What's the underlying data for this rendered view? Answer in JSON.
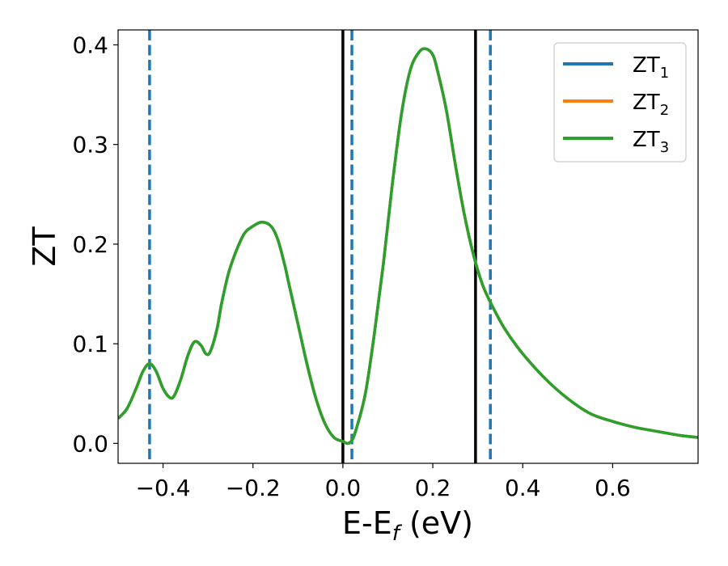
{
  "chart_data": {
    "type": "line",
    "xlabel": "E-E",
    "xlabel_subscript": "f",
    "xlabel_unit": " (eV)",
    "ylabel": "ZT",
    "xlim": [
      -0.5,
      0.79
    ],
    "ylim": [
      -0.02,
      0.415
    ],
    "xticks": [
      -0.4,
      -0.2,
      0.0,
      0.2,
      0.4,
      0.6
    ],
    "xtick_labels": [
      "−0.4",
      "−0.2",
      "0.0",
      "0.2",
      "0.4",
      "0.6"
    ],
    "yticks": [
      0.0,
      0.1,
      0.2,
      0.3,
      0.4
    ],
    "ytick_labels": [
      "0.0",
      "0.1",
      "0.2",
      "0.3",
      "0.4"
    ],
    "grid": false,
    "legend_position": "top-right",
    "x": [
      -0.5,
      -0.48,
      -0.46,
      -0.445,
      -0.43,
      -0.415,
      -0.4,
      -0.385,
      -0.375,
      -0.36,
      -0.345,
      -0.33,
      -0.315,
      -0.305,
      -0.295,
      -0.28,
      -0.27,
      -0.255,
      -0.24,
      -0.22,
      -0.2,
      -0.18,
      -0.16,
      -0.145,
      -0.13,
      -0.12,
      -0.1,
      -0.08,
      -0.06,
      -0.04,
      -0.02,
      0.0,
      0.01,
      0.02,
      0.03,
      0.05,
      0.07,
      0.09,
      0.11,
      0.13,
      0.15,
      0.17,
      0.185,
      0.2,
      0.21,
      0.23,
      0.25,
      0.27,
      0.29,
      0.31,
      0.33,
      0.36,
      0.4,
      0.45,
      0.5,
      0.55,
      0.6,
      0.65,
      0.7,
      0.75,
      0.79
    ],
    "series": [
      {
        "name": "ZT",
        "subscript": "1",
        "color": "#1f77b4",
        "values": [
          0.025,
          0.035,
          0.055,
          0.072,
          0.08,
          0.072,
          0.055,
          0.046,
          0.048,
          0.065,
          0.088,
          0.102,
          0.098,
          0.09,
          0.092,
          0.115,
          0.14,
          0.17,
          0.19,
          0.21,
          0.218,
          0.222,
          0.218,
          0.205,
          0.18,
          0.16,
          0.12,
          0.08,
          0.045,
          0.02,
          0.006,
          0.002,
          0.0,
          0.003,
          0.015,
          0.05,
          0.11,
          0.18,
          0.26,
          0.33,
          0.375,
          0.393,
          0.396,
          0.39,
          0.375,
          0.335,
          0.28,
          0.23,
          0.19,
          0.16,
          0.14,
          0.115,
          0.09,
          0.065,
          0.045,
          0.03,
          0.022,
          0.016,
          0.012,
          0.008,
          0.006
        ]
      },
      {
        "name": "ZT",
        "subscript": "2",
        "color": "#ff7f0e",
        "values": [
          0.025,
          0.035,
          0.055,
          0.072,
          0.08,
          0.072,
          0.055,
          0.046,
          0.048,
          0.065,
          0.088,
          0.102,
          0.098,
          0.09,
          0.092,
          0.115,
          0.14,
          0.17,
          0.19,
          0.21,
          0.218,
          0.222,
          0.218,
          0.205,
          0.18,
          0.16,
          0.12,
          0.08,
          0.045,
          0.02,
          0.006,
          0.002,
          0.0,
          0.003,
          0.015,
          0.05,
          0.11,
          0.18,
          0.26,
          0.33,
          0.375,
          0.393,
          0.396,
          0.39,
          0.375,
          0.335,
          0.28,
          0.23,
          0.19,
          0.16,
          0.14,
          0.115,
          0.09,
          0.065,
          0.045,
          0.03,
          0.022,
          0.016,
          0.012,
          0.008,
          0.006
        ]
      },
      {
        "name": "ZT",
        "subscript": "3",
        "color": "#2ca02c",
        "values": [
          0.025,
          0.035,
          0.055,
          0.072,
          0.08,
          0.072,
          0.055,
          0.046,
          0.048,
          0.065,
          0.088,
          0.102,
          0.098,
          0.09,
          0.092,
          0.115,
          0.14,
          0.17,
          0.19,
          0.21,
          0.218,
          0.222,
          0.218,
          0.205,
          0.18,
          0.16,
          0.12,
          0.08,
          0.045,
          0.02,
          0.006,
          0.002,
          0.0,
          0.003,
          0.015,
          0.05,
          0.11,
          0.18,
          0.26,
          0.33,
          0.375,
          0.393,
          0.396,
          0.39,
          0.375,
          0.335,
          0.28,
          0.23,
          0.19,
          0.16,
          0.14,
          0.115,
          0.09,
          0.065,
          0.045,
          0.03,
          0.022,
          0.016,
          0.012,
          0.008,
          0.006
        ]
      }
    ],
    "vlines": [
      {
        "x": -0.43,
        "style": "dashed",
        "color": "#1f77b4"
      },
      {
        "x": 0.0,
        "style": "solid",
        "color": "#000000"
      },
      {
        "x": 0.02,
        "style": "dashed",
        "color": "#1f77b4"
      },
      {
        "x": 0.295,
        "style": "solid",
        "color": "#000000"
      },
      {
        "x": 0.328,
        "style": "dashed",
        "color": "#1f77b4"
      }
    ]
  }
}
